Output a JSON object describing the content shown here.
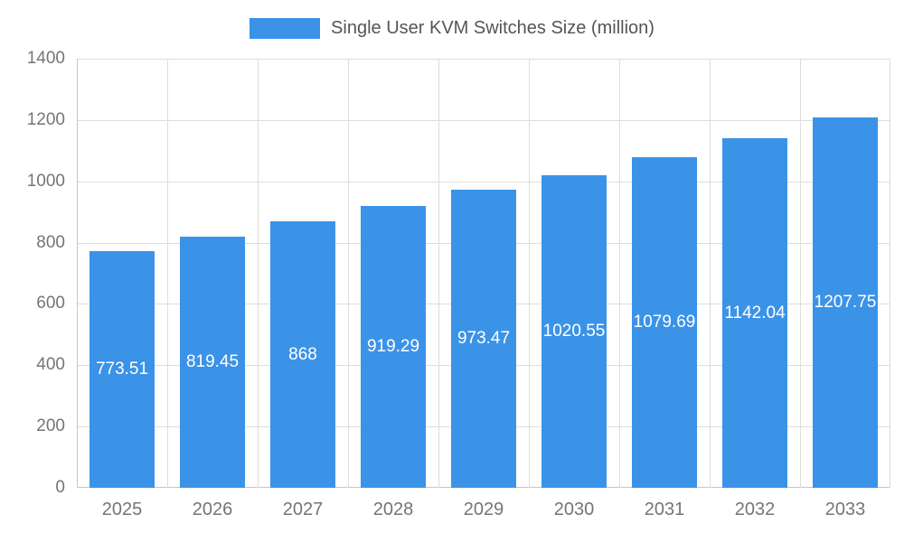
{
  "chart_data": {
    "type": "bar",
    "title": "",
    "legend_entries": [
      "Single User KVM Switches Size (million)"
    ],
    "legend_position": "top",
    "categories": [
      "2025",
      "2026",
      "2027",
      "2028",
      "2029",
      "2030",
      "2031",
      "2032",
      "2033"
    ],
    "series": [
      {
        "name": "Single User KVM Switches Size (million)",
        "values": [
          773.51,
          819.45,
          868,
          919.29,
          973.47,
          1020.55,
          1079.69,
          1142.04,
          1207.75
        ]
      }
    ],
    "value_labels": [
      "773.51",
      "819.45",
      "868",
      "919.29",
      "973.47",
      "1020.55",
      "1079.69",
      "1142.04",
      "1207.75"
    ],
    "xlabel": "",
    "ylabel": "",
    "ylim": [
      0,
      1400
    ],
    "ytick_interval": 200,
    "yticks": [
      "0",
      "200",
      "400",
      "600",
      "800",
      "1000",
      "1200",
      "1400"
    ],
    "grid": true,
    "bar_color": "#3b93e8",
    "value_label_color": "#ffffff",
    "axis_text_color": "#757575",
    "grid_color": "#dddddd",
    "axis_line_color": "#c6c6c6"
  }
}
